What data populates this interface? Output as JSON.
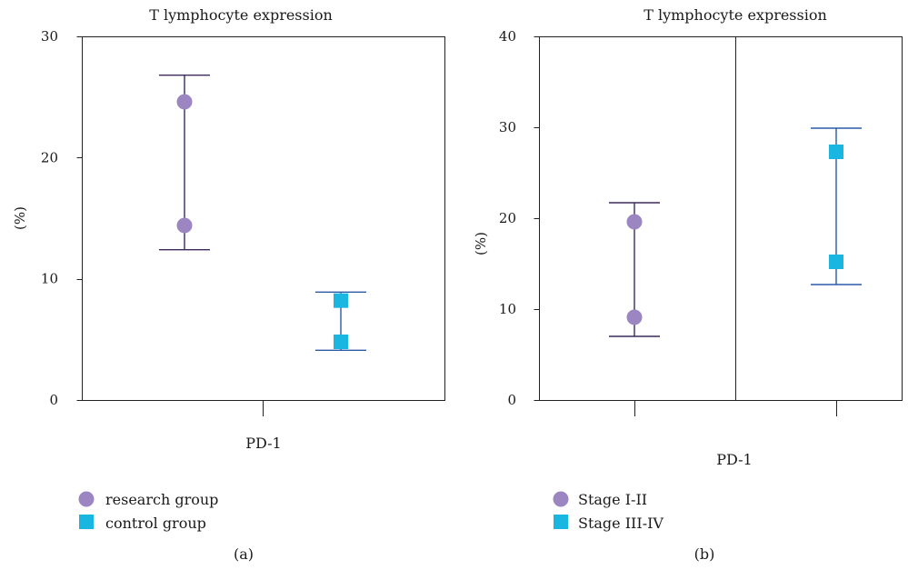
{
  "chart_data": [
    {
      "type": "scatter",
      "title": "T lymphocyte expression",
      "xlabel": "PD-1",
      "ylabel": "(%)",
      "ylim": [
        0,
        30
      ],
      "yticks": [
        0,
        10,
        20,
        30
      ],
      "categories": [
        "research group",
        "control group"
      ],
      "panel_label": "(a)",
      "divider": false,
      "series": [
        {
          "name": "research group",
          "marker": "circle",
          "color": "#9b86c2",
          "bar_color": "#3d2a5c",
          "points": [
            24.6,
            14.4
          ],
          "range": [
            12.4,
            26.8
          ]
        },
        {
          "name": "control group",
          "marker": "square",
          "color": "#19b6e2",
          "bar_color": "#2a5aa8",
          "points": [
            8.2,
            4.8
          ],
          "range": [
            4.1,
            8.9
          ]
        }
      ]
    },
    {
      "type": "scatter",
      "title": "T lymphocyte expression",
      "xlabel": "PD-1",
      "ylabel": "(%)",
      "ylim": [
        0,
        40
      ],
      "yticks": [
        0,
        10,
        20,
        30,
        40
      ],
      "categories": [
        "Stage I-II",
        "Stage III-IV"
      ],
      "panel_label": "(b)",
      "divider": true,
      "series": [
        {
          "name": "Stage I-II",
          "marker": "circle",
          "color": "#9b86c2",
          "bar_color": "#3d2a5c",
          "points": [
            19.6,
            9.1
          ],
          "range": [
            7.0,
            21.7
          ]
        },
        {
          "name": "Stage III-IV",
          "marker": "square",
          "color": "#19b6e2",
          "bar_color": "#2a5aa8",
          "points": [
            27.3,
            15.2
          ],
          "range": [
            12.7,
            29.9
          ]
        }
      ]
    }
  ]
}
